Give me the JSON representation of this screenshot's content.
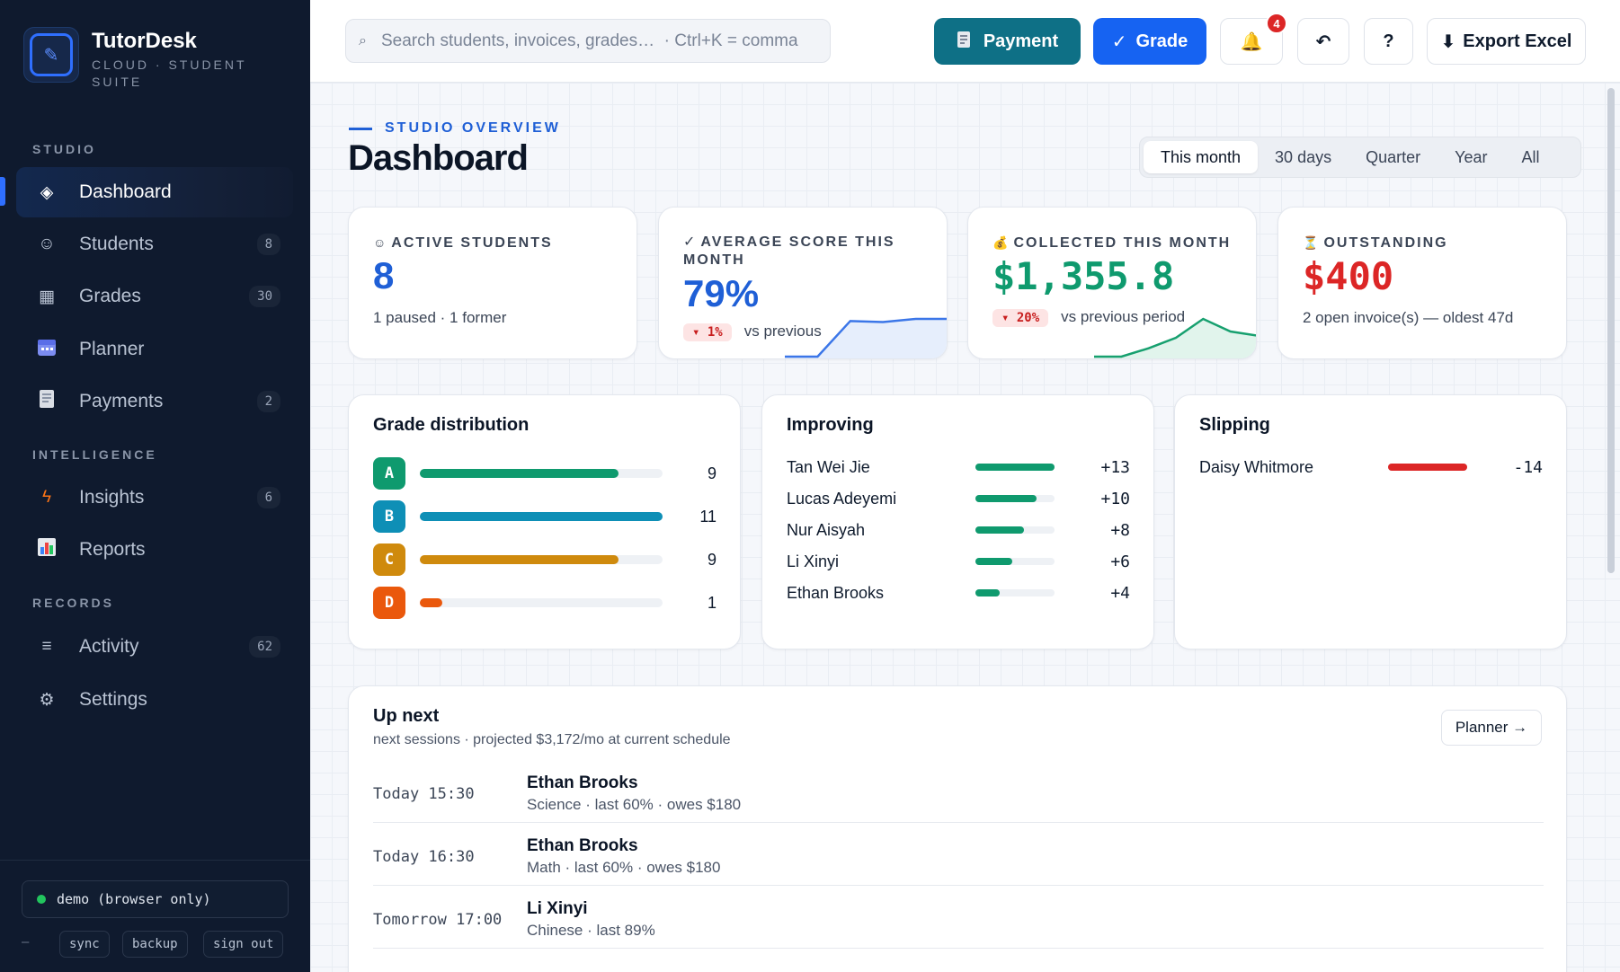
{
  "brand": {
    "name": "TutorDesk",
    "subtitle": "CLOUD · STUDENT SUITE"
  },
  "sidebar": {
    "sections": [
      "STUDIO",
      "INTELLIGENCE",
      "RECORDS"
    ],
    "items": [
      {
        "label": "Dashboard",
        "icon": "diamond-icon",
        "badge": "",
        "active": true
      },
      {
        "label": "Students",
        "icon": "smiley-icon",
        "badge": "8"
      },
      {
        "label": "Grades",
        "icon": "grid-icon",
        "badge": "30"
      },
      {
        "label": "Planner",
        "icon": "calendar-icon",
        "badge": ""
      },
      {
        "label": "Payments",
        "icon": "receipt-icon",
        "badge": "2"
      },
      {
        "label": "Insights",
        "icon": "lightning-icon",
        "badge": "6"
      },
      {
        "label": "Reports",
        "icon": "bar-chart-icon",
        "badge": ""
      },
      {
        "label": "Activity",
        "icon": "list-icon",
        "badge": "62"
      },
      {
        "label": "Settings",
        "icon": "gear-icon",
        "badge": ""
      }
    ],
    "footer": {
      "status": "demo (browser only)",
      "dash": "–",
      "buttons": [
        "sync",
        "backup",
        "sign out"
      ]
    }
  },
  "topbar": {
    "search_placeholder": "Search students, invoices, grades…  · Ctrl+K = comma",
    "payment_label": "Payment",
    "grade_label": "Grade",
    "notifications_count": "4",
    "export_label": "Export Excel",
    "help_label": "?"
  },
  "header": {
    "eyebrow": "STUDIO OVERVIEW",
    "title": "Dashboard"
  },
  "ranges": {
    "options": [
      "This month",
      "30 days",
      "Quarter",
      "Year",
      "All"
    ],
    "selected": "This month"
  },
  "kpis": {
    "active_students": {
      "label": "ACTIVE STUDENTS",
      "value": "8",
      "sub": "1 paused · 1 former"
    },
    "average_score": {
      "label": "AVERAGE SCORE THIS MONTH",
      "value": "79%",
      "delta": "▾ 1%",
      "delta_sub": "vs previous",
      "spark": [
        0,
        0,
        34,
        33,
        36,
        36
      ]
    },
    "collected": {
      "label": "COLLECTED THIS MONTH",
      "value": "$1,355.8",
      "delta": "▾ 20%",
      "delta_sub": "vs previous period",
      "spark": [
        0,
        0,
        8,
        18,
        36,
        24,
        20
      ]
    },
    "outstanding": {
      "label": "OUTSTANDING",
      "value": "$400",
      "sub": "2 open invoice(s) — oldest 47d"
    }
  },
  "grade_distribution": {
    "title": "Grade distribution",
    "max": 11,
    "rows": [
      {
        "grade": "A",
        "count": 9,
        "color": "#0f9a6e"
      },
      {
        "grade": "B",
        "count": 11,
        "color": "#0e8fb6"
      },
      {
        "grade": "C",
        "count": 9,
        "color": "#cf8a0d"
      },
      {
        "grade": "D",
        "count": 1,
        "color": "#ea580c"
      }
    ]
  },
  "improving": {
    "title": "Improving",
    "max": 13,
    "rows": [
      {
        "name": "Tan Wei Jie",
        "delta": "+13",
        "value": 13
      },
      {
        "name": "Lucas Adeyemi",
        "delta": "+10",
        "value": 10
      },
      {
        "name": "Nur Aisyah",
        "delta": "+8",
        "value": 8
      },
      {
        "name": "Li Xinyi",
        "delta": "+6",
        "value": 6
      },
      {
        "name": "Ethan Brooks",
        "delta": "+4",
        "value": 4
      }
    ]
  },
  "slipping": {
    "title": "Slipping",
    "max": 14,
    "rows": [
      {
        "name": "Daisy Whitmore",
        "delta": "-14",
        "value": 14
      }
    ]
  },
  "up_next": {
    "title": "Up next",
    "subtitle": "next sessions · projected $3,172/mo at current schedule",
    "planner_label": "Planner →",
    "sessions": [
      {
        "time": "Today 15:30",
        "name": "Ethan Brooks",
        "detail": "Science · last 60% · owes $180"
      },
      {
        "time": "Today 16:30",
        "name": "Ethan Brooks",
        "detail": "Math · last 60% · owes $180"
      },
      {
        "time": "Tomorrow 17:00",
        "name": "Li Xinyi",
        "detail": "Chinese · last 89%"
      }
    ]
  },
  "colors": {
    "accent": "#1663f2",
    "teal": "#0e7086",
    "positive": "#0f9a6e",
    "negative": "#dc2626",
    "sidebar_bg": "#0f1a2e"
  }
}
